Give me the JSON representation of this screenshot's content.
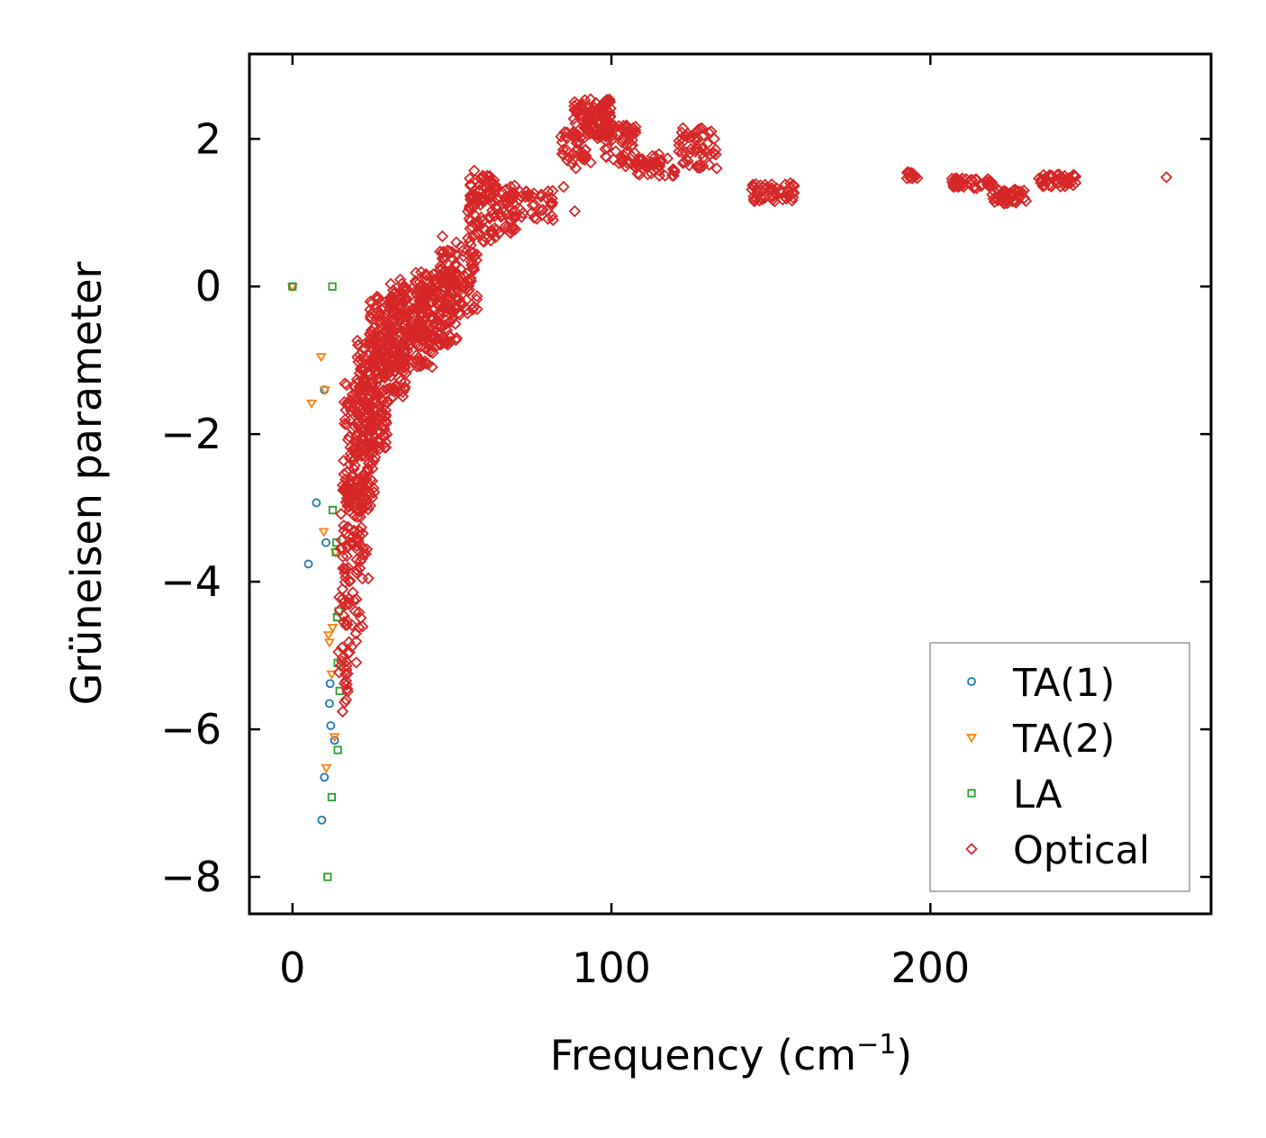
{
  "chart_data": {
    "type": "scatter",
    "title": "",
    "xlabel": "Frequency (cm",
    "xlabel_sup": "−1",
    "xlabel_close": ")",
    "ylabel": "Grüneisen parameter",
    "xlim": [
      -13.5,
      288
    ],
    "ylim": [
      -8.5,
      3.15
    ],
    "xticks": [
      0,
      100,
      200
    ],
    "xtick_labels": [
      "0",
      "100",
      "200"
    ],
    "yticks": [
      2,
      0,
      -2,
      -4,
      -6,
      -8
    ],
    "ytick_labels": [
      "2",
      "0",
      "−2",
      "−4",
      "−6",
      "−8"
    ],
    "grid": false,
    "legend_position": "lower-right",
    "series": [
      {
        "name": "TA(1)",
        "marker": "circle",
        "color": "#1f77b4",
        "points": [
          [
            0,
            0
          ],
          [
            10,
            -1.4
          ],
          [
            7.5,
            -2.93
          ],
          [
            10.5,
            -3.47
          ],
          [
            5,
            -3.76
          ],
          [
            11.8,
            -5.38
          ],
          [
            11.6,
            -5.65
          ],
          [
            12,
            -5.95
          ],
          [
            13.2,
            -6.15
          ],
          [
            10,
            -6.65
          ],
          [
            9.2,
            -7.23
          ]
        ]
      },
      {
        "name": "TA(2)",
        "marker": "triangle-down",
        "color": "#ff7f0e",
        "points": [
          [
            0,
            0
          ],
          [
            9,
            -0.95
          ],
          [
            6,
            -1.58
          ],
          [
            10.2,
            -1.4
          ],
          [
            9.8,
            -3.32
          ],
          [
            13.5,
            -3.6
          ],
          [
            12.6,
            -4.62
          ],
          [
            11.3,
            -4.72
          ],
          [
            11.6,
            -4.82
          ],
          [
            12.3,
            -5.25
          ],
          [
            13.2,
            -6.1
          ],
          [
            10.6,
            -6.52
          ]
        ]
      },
      {
        "name": "LA",
        "marker": "square",
        "color": "#2ca02c",
        "points": [
          [
            0,
            0
          ],
          [
            12.5,
            0
          ],
          [
            12.6,
            -3.03
          ],
          [
            13.8,
            -3.47
          ],
          [
            13.6,
            -3.6
          ],
          [
            14.5,
            -4.4
          ],
          [
            14,
            -4.48
          ],
          [
            14.2,
            -5.1
          ],
          [
            14.8,
            -5.48
          ],
          [
            14.2,
            -6.28
          ],
          [
            12.3,
            -6.92
          ],
          [
            11,
            -8
          ]
        ]
      },
      {
        "name": "Optical",
        "marker": "diamond",
        "color": "#d62728",
        "clusters": [
          {
            "x": [
              14,
              18
            ],
            "y": [
              -5.8,
              -4.0
            ],
            "n": 30
          },
          {
            "x": [
              16,
              22
            ],
            "y": [
              -5.1,
              -4.1
            ],
            "n": 20
          },
          {
            "x": [
              15,
              24
            ],
            "y": [
              -4.0,
              -2.6
            ],
            "n": 90
          },
          {
            "x": [
              16,
              26
            ],
            "y": [
              -3.0,
              -1.3
            ],
            "n": 150
          },
          {
            "x": [
              20,
              30
            ],
            "y": [
              -2.2,
              -0.6
            ],
            "n": 160
          },
          {
            "x": [
              24,
              36
            ],
            "y": [
              -1.5,
              -0.1
            ],
            "n": 170
          },
          {
            "x": [
              30,
              44
            ],
            "y": [
              -1.1,
              0.1
            ],
            "n": 160
          },
          {
            "x": [
              38,
              52
            ],
            "y": [
              -0.8,
              0.2
            ],
            "n": 140
          },
          {
            "x": [
              46,
              58
            ],
            "y": [
              -0.4,
              0.6
            ],
            "n": 100
          },
          {
            "x": [
              55,
              64
            ],
            "y": [
              0.6,
              1.5
            ],
            "n": 80
          },
          {
            "x": [
              62,
              70
            ],
            "y": [
              0.7,
              1.4
            ],
            "n": 50
          },
          {
            "x": [
              68,
              82
            ],
            "y": [
              0.9,
              1.3
            ],
            "n": 40
          },
          {
            "x": [
              84,
              92
            ],
            "y": [
              1.6,
              2.1
            ],
            "n": 40
          },
          {
            "x": [
              88,
              100
            ],
            "y": [
              2.0,
              2.55
            ],
            "n": 110
          },
          {
            "x": [
              98,
              108
            ],
            "y": [
              1.6,
              2.2
            ],
            "n": 60
          },
          {
            "x": [
              108,
              120
            ],
            "y": [
              1.5,
              1.8
            ],
            "n": 40
          },
          {
            "x": [
              120,
              133
            ],
            "y": [
              1.6,
              2.15
            ],
            "n": 50
          },
          {
            "x": [
              144,
              158
            ],
            "y": [
              1.15,
              1.4
            ],
            "n": 50
          },
          {
            "x": [
              192,
              196
            ],
            "y": [
              1.45,
              1.55
            ],
            "n": 12
          },
          {
            "x": [
              206,
              220
            ],
            "y": [
              1.33,
              1.47
            ],
            "n": 45
          },
          {
            "x": [
              219,
              230
            ],
            "y": [
              1.12,
              1.32
            ],
            "n": 40
          },
          {
            "x": [
              234,
              246
            ],
            "y": [
              1.35,
              1.52
            ],
            "n": 50
          }
        ],
        "points": [
          [
            274,
            1.48
          ],
          [
            57,
            1.57
          ],
          [
            47,
            0.68
          ],
          [
            88.5,
            1.02
          ],
          [
            93.5,
            1.68
          ],
          [
            133,
            1.6
          ],
          [
            85,
            1.35
          ]
        ]
      }
    ]
  }
}
